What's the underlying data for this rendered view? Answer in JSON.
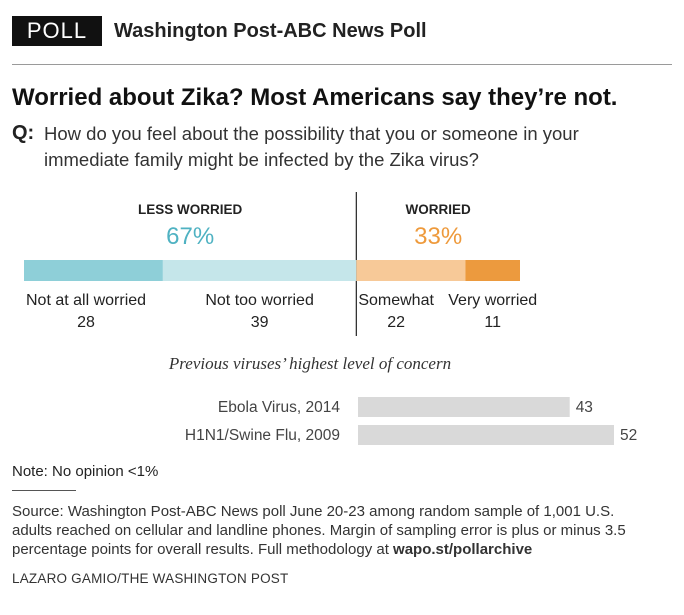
{
  "header": {
    "badge": "POLL",
    "publisher": "Washington Post-ABC News Poll"
  },
  "headline": "Worried about Zika? Most Americans say they’re not.",
  "question": {
    "prefix": "Q:",
    "text": "How do you feel about the possibility that you or someone in your immediate family might be infected by the Zika virus?"
  },
  "chart_data": [
    {
      "type": "bar",
      "orientation": "horizontal-stacked",
      "groups": [
        {
          "label": "LESS WORRIED",
          "total": "67%",
          "color": "#4fb2c2"
        },
        {
          "label": "WORRIED",
          "total": "33%",
          "color": "#ee9a3c"
        }
      ],
      "categories": [
        "Not at all worried",
        "Not too worried",
        "Somewhat",
        "Very worried"
      ],
      "values": [
        28,
        39,
        22,
        11
      ],
      "colors": [
        "#8ecfd8",
        "#c5e6ea",
        "#f7c998",
        "#ec9a3e"
      ],
      "scale_max": 100
    },
    {
      "type": "bar",
      "orientation": "horizontal",
      "title": "Previous viruses’ highest level of concern",
      "categories": [
        "Ebola Virus, 2014",
        "H1N1/Swine Flu, 2009"
      ],
      "values": [
        43,
        52
      ],
      "color": "#d9d9d9",
      "xlim": [
        0,
        52
      ]
    }
  ],
  "note": "Note: No opinion <1%",
  "source": {
    "text": "Source: Washington Post-ABC News poll June 20-23 among random sample of 1,001 U.S. adults reached on cellular and landline phones. Margin of sampling error is plus or minus 3.5 percentage points for overall results. Full methodology at ",
    "link": "wapo.st/pollarchive"
  },
  "credit": "LAZARO GAMIO/THE WASHINGTON POST"
}
